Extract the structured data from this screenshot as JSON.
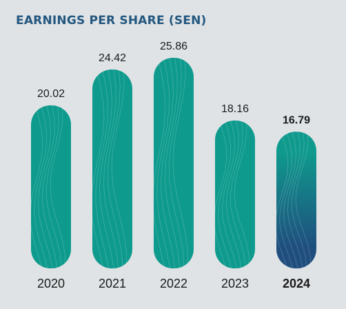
{
  "chart_data": {
    "type": "bar",
    "title": "EARNINGS PER SHARE (SEN)",
    "categories": [
      "2020",
      "2021",
      "2022",
      "2023",
      "2024"
    ],
    "values": [
      20.02,
      24.42,
      25.86,
      18.16,
      16.79
    ],
    "value_labels": [
      "20.02",
      "24.42",
      "25.86",
      "18.16",
      "16.79"
    ],
    "highlight": "2024",
    "ylim": [
      0,
      25.86
    ],
    "grid": false,
    "colors": {
      "bar": "#0e9a8d",
      "highlight_top": "#0f9a8d",
      "highlight_bottom": "#1f4e7e",
      "title": "#23577f",
      "background": "#dfe3e6"
    }
  }
}
